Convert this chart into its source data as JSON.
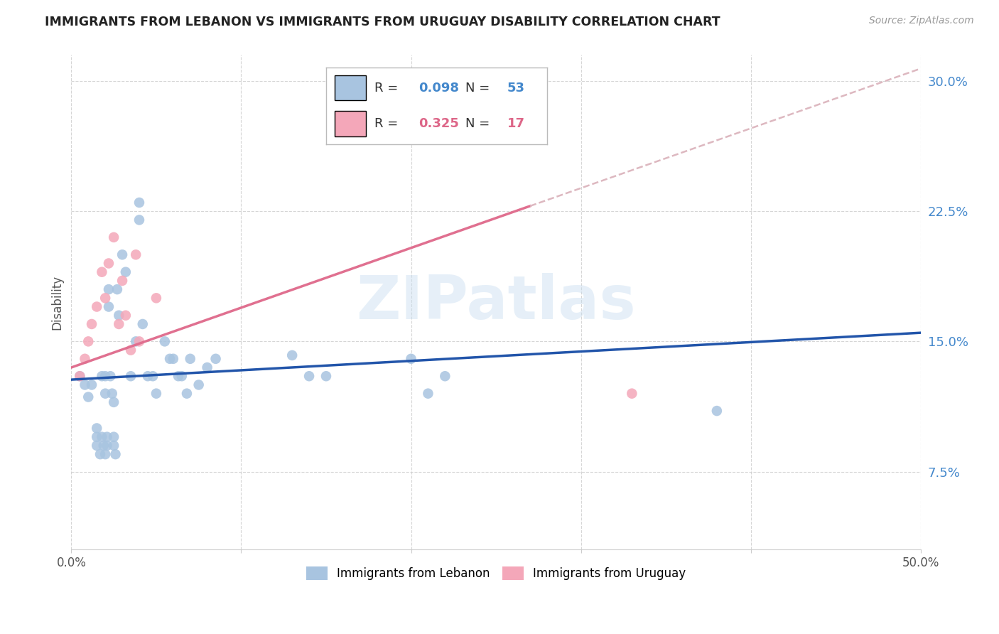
{
  "title": "IMMIGRANTS FROM LEBANON VS IMMIGRANTS FROM URUGUAY DISABILITY CORRELATION CHART",
  "source": "Source: ZipAtlas.com",
  "ylabel": "Disability",
  "xlim": [
    0.0,
    0.5
  ],
  "ylim": [
    0.03,
    0.315
  ],
  "yticks": [
    0.075,
    0.15,
    0.225,
    0.3
  ],
  "ytick_labels": [
    "7.5%",
    "15.0%",
    "22.5%",
    "30.0%"
  ],
  "xticks": [
    0.0,
    0.1,
    0.2,
    0.3,
    0.4,
    0.5
  ],
  "xtick_labels": [
    "0.0%",
    "",
    "",
    "",
    "",
    "50.0%"
  ],
  "legend_R_lebanon": "0.098",
  "legend_N_lebanon": "53",
  "legend_R_uruguay": "0.325",
  "legend_N_uruguay": "17",
  "lebanon_color": "#a8c4e0",
  "uruguay_color": "#f4a7b9",
  "lebanon_line_color": "#2255aa",
  "uruguay_line_solid_color": "#e07090",
  "uruguay_line_dash_color": "#ddb8c0",
  "watermark": "ZIPatlas",
  "lebanon_line_x0": 0.0,
  "lebanon_line_x1": 0.5,
  "lebanon_line_y0": 0.128,
  "lebanon_line_y1": 0.155,
  "uruguay_line_solid_x0": 0.0,
  "uruguay_line_solid_x1": 0.27,
  "uruguay_line_y0": 0.135,
  "uruguay_line_y1": 0.228,
  "uruguay_line_dash_x0": 0.27,
  "uruguay_line_dash_x1": 0.5,
  "lebanon_x": [
    0.005,
    0.008,
    0.01,
    0.012,
    0.015,
    0.015,
    0.015,
    0.017,
    0.018,
    0.018,
    0.019,
    0.02,
    0.02,
    0.02,
    0.021,
    0.021,
    0.022,
    0.022,
    0.023,
    0.024,
    0.025,
    0.025,
    0.025,
    0.026,
    0.027,
    0.028,
    0.03,
    0.032,
    0.035,
    0.038,
    0.04,
    0.04,
    0.042,
    0.045,
    0.048,
    0.05,
    0.055,
    0.058,
    0.06,
    0.063,
    0.065,
    0.068,
    0.07,
    0.075,
    0.08,
    0.085,
    0.13,
    0.14,
    0.15,
    0.2,
    0.21,
    0.22,
    0.38
  ],
  "lebanon_y": [
    0.13,
    0.125,
    0.118,
    0.125,
    0.1,
    0.095,
    0.09,
    0.085,
    0.13,
    0.095,
    0.09,
    0.085,
    0.13,
    0.12,
    0.095,
    0.09,
    0.18,
    0.17,
    0.13,
    0.12,
    0.115,
    0.095,
    0.09,
    0.085,
    0.18,
    0.165,
    0.2,
    0.19,
    0.13,
    0.15,
    0.23,
    0.22,
    0.16,
    0.13,
    0.13,
    0.12,
    0.15,
    0.14,
    0.14,
    0.13,
    0.13,
    0.12,
    0.14,
    0.125,
    0.135,
    0.14,
    0.142,
    0.13,
    0.13,
    0.14,
    0.12,
    0.13,
    0.11
  ],
  "uruguay_x": [
    0.005,
    0.008,
    0.01,
    0.012,
    0.015,
    0.018,
    0.02,
    0.022,
    0.025,
    0.028,
    0.03,
    0.032,
    0.035,
    0.038,
    0.04,
    0.05,
    0.33
  ],
  "uruguay_y": [
    0.13,
    0.14,
    0.15,
    0.16,
    0.17,
    0.19,
    0.175,
    0.195,
    0.21,
    0.16,
    0.185,
    0.165,
    0.145,
    0.2,
    0.15,
    0.175,
    0.12
  ]
}
